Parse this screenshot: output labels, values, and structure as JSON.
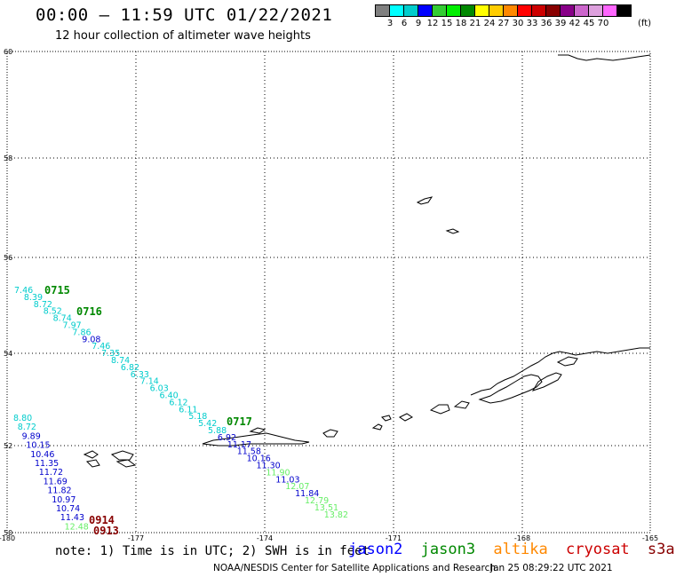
{
  "header": {
    "title": "00:00 – 11:59 UTC 01/22/2021",
    "subtitle": "12 hour collection of altimeter wave heights"
  },
  "legend": {
    "colors": [
      "#808080",
      "#00ffff",
      "#00cccc",
      "#0000ff",
      "#33cc33",
      "#00ee00",
      "#008800",
      "#ffff00",
      "#ffcc00",
      "#ff8800",
      "#ff0000",
      "#cc0000",
      "#880000",
      "#880088",
      "#cc66cc",
      "#dda0dd",
      "#ff66ff",
      "#000000"
    ],
    "labels": [
      "3",
      "6",
      "9",
      "12",
      "15",
      "18",
      "21",
      "24",
      "27",
      "30",
      "33",
      "36",
      "39",
      "42",
      "45",
      "70"
    ],
    "unit": "(ft)"
  },
  "axes": {
    "lat_labels": [
      "60",
      "58",
      "56",
      "54",
      "52",
      "50"
    ],
    "lon_labels": [
      "-180",
      "-177",
      "-174",
      "-171",
      "-168",
      "-165"
    ]
  },
  "passes": [
    {
      "id": "0715",
      "color": "#008800"
    },
    {
      "id": "0716",
      "color": "#008800"
    },
    {
      "id": "0717",
      "color": "#008800"
    },
    {
      "id": "0914",
      "color": "#880000"
    },
    {
      "id": "0913",
      "color": "#880000"
    }
  ],
  "track_a": {
    "values": [
      "7.46",
      "8.39",
      "8.72",
      "8.52",
      "8.74",
      "7.97",
      "7.86",
      "9.08",
      "7.46",
      "7.35",
      "8.74",
      "6.82",
      "6.33",
      "7.14",
      "6.03",
      "6.40",
      "6.12",
      "6.11",
      "5.18",
      "5.42",
      "5.88",
      "6.92",
      "11.17",
      "11.58",
      "10.16",
      "11.30",
      "11.90",
      "11.03",
      "12.07",
      "11.84",
      "12.79",
      "13.51",
      "13.82"
    ],
    "colors": [
      "#00cccc",
      "#00cccc",
      "#00cccc",
      "#00cccc",
      "#00cccc",
      "#00cccc",
      "#00cccc",
      "#0000cc",
      "#00cccc",
      "#00cccc",
      "#00cccc",
      "#00cccc",
      "#00cccc",
      "#00cccc",
      "#00cccc",
      "#00cccc",
      "#00cccc",
      "#00cccc",
      "#00cccc",
      "#00cccc",
      "#00cccc",
      "#0000cc",
      "#0000cc",
      "#0000cc",
      "#0000cc",
      "#0000cc",
      "#66ee66",
      "#0000cc",
      "#66ee66",
      "#0000cc",
      "#66ee66",
      "#66ee66",
      "#66ee66"
    ]
  },
  "track_b": {
    "values": [
      "8.80",
      "8.72",
      "9.89",
      "10.15",
      "10.46",
      "11.35",
      "11.72",
      "11.69",
      "11.82",
      "10.97",
      "10.74",
      "11.43",
      "12.48"
    ],
    "colors": [
      "#00cccc",
      "#00cccc",
      "#0000cc",
      "#0000cc",
      "#0000cc",
      "#0000cc",
      "#0000cc",
      "#0000cc",
      "#0000cc",
      "#0000cc",
      "#0000cc",
      "#0000cc",
      "#66ee66"
    ]
  },
  "footer": {
    "note": "note: 1) Time is in UTC; 2) SWH is in feet",
    "satellites": [
      {
        "name": "jason2",
        "color": "#0000ff"
      },
      {
        "name": "jason3",
        "color": "#008800"
      },
      {
        "name": "altika",
        "color": "#ff8800"
      },
      {
        "name": "cryosat",
        "color": "#cc0000"
      },
      {
        "name": "s3a",
        "color": "#880000"
      }
    ],
    "credit": "NOAA/NESDIS Center for Satellite Applications and Research",
    "timestamp": "Jan 25 08:29:22 UTC 2021"
  }
}
